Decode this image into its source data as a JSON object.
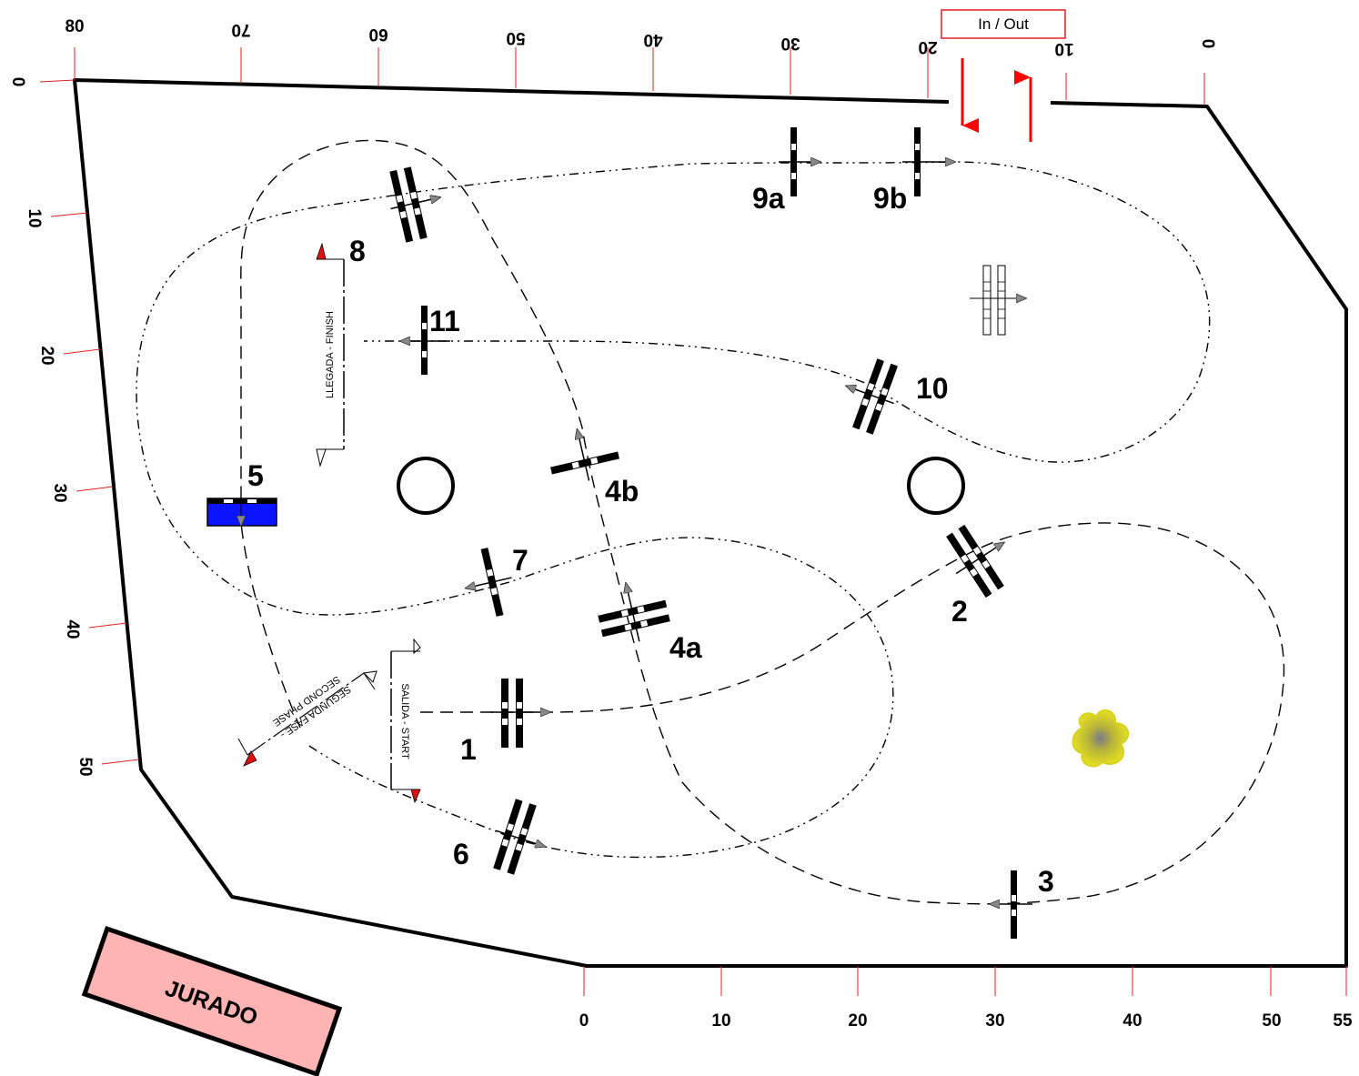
{
  "arena": {
    "in_out_label": "In / Out",
    "jury_label": "JURADO"
  },
  "rulers": {
    "bottom": [
      "0",
      "10",
      "20",
      "30",
      "40",
      "50",
      "55"
    ],
    "top": [
      "80",
      "70",
      "60",
      "50",
      "40",
      "30",
      "20",
      "10",
      "0"
    ],
    "left": [
      "0",
      "10",
      "20",
      "30",
      "40",
      "50"
    ]
  },
  "lines": {
    "start": "SALIDA - START",
    "finish": "LLEGADA - FINISH",
    "second_phase_line1": "SEGUNDA FASE -",
    "second_phase_line2": "SECOND PHASE"
  },
  "obstacles": [
    {
      "id": "1",
      "label": "1"
    },
    {
      "id": "2",
      "label": "2"
    },
    {
      "id": "3",
      "label": "3"
    },
    {
      "id": "4a",
      "label": "4a"
    },
    {
      "id": "4b",
      "label": "4b"
    },
    {
      "id": "5",
      "label": "5"
    },
    {
      "id": "6",
      "label": "6"
    },
    {
      "id": "7",
      "label": "7"
    },
    {
      "id": "8",
      "label": "8"
    },
    {
      "id": "9a",
      "label": "9a"
    },
    {
      "id": "9b",
      "label": "9b"
    },
    {
      "id": "10",
      "label": "10"
    },
    {
      "id": "11",
      "label": "11"
    }
  ],
  "colors": {
    "water": "#0a14ff",
    "jury": "#ffb4b4",
    "flag": "#e01010",
    "in_out_arrow": "#ff0000",
    "bush": "#d8d21c"
  }
}
